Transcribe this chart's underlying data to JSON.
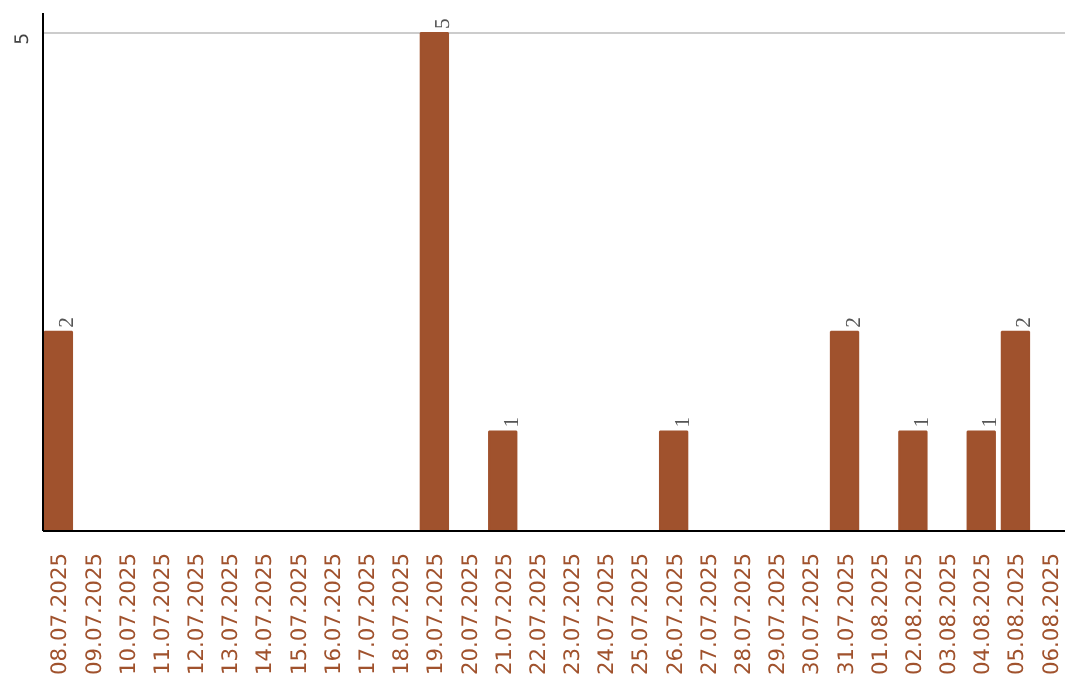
{
  "chart_data": {
    "type": "bar",
    "categories": [
      "08.07.2025",
      "09.07.2025",
      "10.07.2025",
      "11.07.2025",
      "12.07.2025",
      "13.07.2025",
      "14.07.2025",
      "15.07.2025",
      "16.07.2025",
      "17.07.2025",
      "18.07.2025",
      "19.07.2025",
      "20.07.2025",
      "21.07.2025",
      "22.07.2025",
      "23.07.2025",
      "24.07.2025",
      "25.07.2025",
      "26.07.2025",
      "27.07.2025",
      "28.07.2025",
      "29.07.2025",
      "30.07.2025",
      "31.07.2025",
      "01.08.2025",
      "02.08.2025",
      "03.08.2025",
      "04.08.2025",
      "05.08.2025",
      "06.08.2025"
    ],
    "values": [
      2,
      0,
      0,
      0,
      0,
      0,
      0,
      0,
      0,
      0,
      0,
      5,
      0,
      1,
      0,
      0,
      0,
      0,
      1,
      0,
      0,
      0,
      0,
      2,
      0,
      1,
      0,
      1,
      2,
      0
    ],
    "value_labels": [
      "2",
      null,
      null,
      null,
      null,
      null,
      null,
      null,
      null,
      null,
      null,
      "5",
      null,
      "1",
      null,
      null,
      null,
      null,
      "1",
      null,
      null,
      null,
      null,
      "2",
      null,
      "1",
      null,
      "1",
      "2",
      null
    ],
    "color": "#a0522d",
    "ylim": [
      0,
      5.2
    ],
    "yticks": [
      5
    ],
    "grid": "y"
  }
}
